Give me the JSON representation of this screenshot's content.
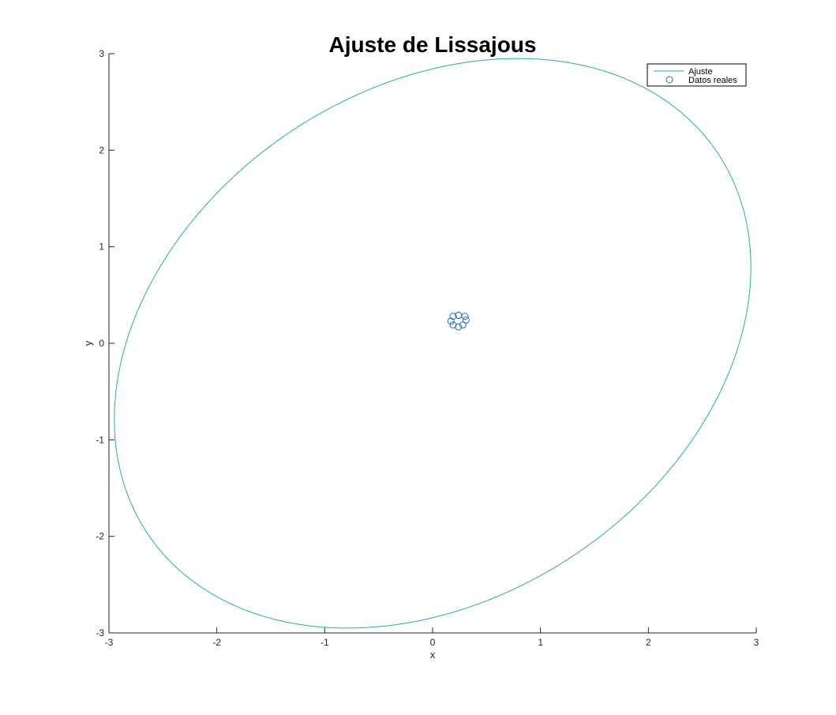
{
  "chart_data": {
    "type": "line",
    "title": "Ajuste de Lissajous",
    "xlabel": "x",
    "ylabel": "y",
    "xlim": [
      -3,
      3
    ],
    "ylim": [
      -3,
      3
    ],
    "xticks": [
      -3,
      -2,
      -1,
      0,
      1,
      2,
      3
    ],
    "yticks": [
      -3,
      -2,
      -1,
      0,
      1,
      2,
      3
    ],
    "grid": false,
    "legend_position": "top-right",
    "series": [
      {
        "name": "Ajuste",
        "kind": "line",
        "color": "#20b2a0",
        "param": {
          "A": 2.95,
          "B": 2.95,
          "phase_x": 0,
          "phase_y": 1.3,
          "ratio_x": 1,
          "ratio_y": 1,
          "samples": 400
        }
      },
      {
        "name": "Datos reales",
        "kind": "marker",
        "marker": "circle",
        "color": "#1f6fb0",
        "x": [
          0.24,
          0.3,
          0.31,
          0.28,
          0.24,
          0.19,
          0.17,
          0.19,
          0.24
        ],
        "y": [
          0.29,
          0.28,
          0.24,
          0.19,
          0.17,
          0.19,
          0.23,
          0.28,
          0.29
        ]
      }
    ]
  }
}
